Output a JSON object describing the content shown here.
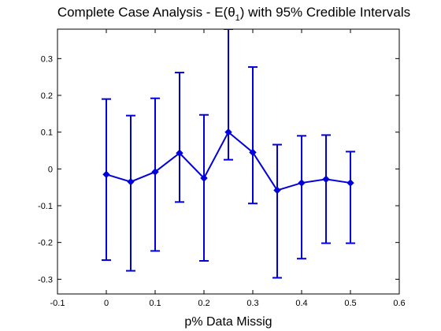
{
  "chart_data": {
    "type": "line",
    "title_main": "Complete Case Analysis - E(θ",
    "title_sub": "1",
    "title_tail": ") with 95% Credible Intervals",
    "xlabel": "p% Data Missig",
    "ylabel": "",
    "xlim": [
      -0.1,
      0.6
    ],
    "ylim": [
      -0.34,
      0.38
    ],
    "xticks": [
      -0.1,
      0,
      0.1,
      0.2,
      0.3,
      0.4,
      0.5,
      0.6
    ],
    "xtick_labels": [
      "-0.1",
      "0",
      "0.1",
      "0.2",
      "0.3",
      "0.4",
      "0.5",
      "0.6"
    ],
    "yticks": [
      -0.3,
      -0.2,
      -0.1,
      0,
      0.1,
      0.2,
      0.3
    ],
    "ytick_labels": [
      "-0.3",
      "-0.2",
      "-0.1",
      "0",
      "0.1",
      "0.2",
      "0.3"
    ],
    "grid": false,
    "series": [
      {
        "color": "#0000dd",
        "marker": "diamond",
        "x": [
          0,
          0.05,
          0.1,
          0.15,
          0.2,
          0.25,
          0.3,
          0.35,
          0.4,
          0.45,
          0.5
        ],
        "y": [
          -0.015,
          -0.035,
          -0.008,
          0.043,
          -0.025,
          0.1,
          0.045,
          -0.058,
          -0.038,
          -0.028,
          -0.038
        ],
        "lower": [
          -0.248,
          -0.277,
          -0.223,
          -0.09,
          -0.25,
          0.025,
          -0.094,
          -0.296,
          -0.244,
          -0.202,
          -0.202
        ],
        "upper": [
          0.19,
          0.145,
          0.192,
          0.262,
          0.147,
          0.38,
          0.277,
          0.066,
          0.09,
          0.092,
          0.047
        ]
      }
    ]
  }
}
